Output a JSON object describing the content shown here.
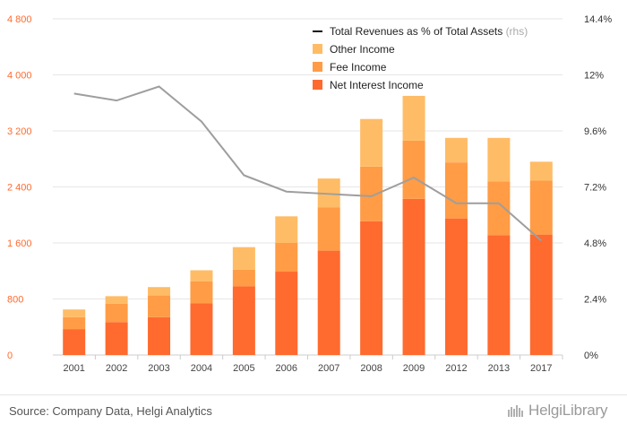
{
  "chart_data": {
    "type": "bar",
    "categories": [
      "2001",
      "2002",
      "2003",
      "2004",
      "2005",
      "2006",
      "2007",
      "2008",
      "2009",
      "2012",
      "2013",
      "2017"
    ],
    "series": [
      {
        "name": "Net Interest Income",
        "color": "#ff6a2f",
        "values": [
          370,
          470,
          540,
          740,
          980,
          1190,
          1490,
          1910,
          2230,
          1950,
          1710,
          1720
        ]
      },
      {
        "name": "Fee Income",
        "color": "#ff9c45",
        "values": [
          170,
          260,
          310,
          310,
          240,
          410,
          620,
          780,
          830,
          800,
          770,
          770
        ]
      },
      {
        "name": "Other Income",
        "color": "#ffbc66",
        "values": [
          110,
          110,
          120,
          160,
          320,
          380,
          410,
          680,
          640,
          350,
          620,
          270
        ]
      }
    ],
    "line": {
      "name": "Total Revenues as % of Total Assets",
      "suffix": "(rhs)",
      "color": "#9e9e9e",
      "values": [
        11.2,
        10.9,
        11.5,
        10.0,
        7.7,
        7.0,
        6.9,
        6.8,
        7.6,
        6.5,
        6.5,
        4.9
      ]
    },
    "left_axis": {
      "min": 0,
      "max": 4800,
      "ticks": [
        "0",
        "800",
        "1 600",
        "2 400",
        "3 200",
        "4 000",
        "4 800"
      ],
      "tick_values": [
        0,
        800,
        1600,
        2400,
        3200,
        4000,
        4800
      ]
    },
    "right_axis": {
      "min": 0,
      "max": 14.4,
      "ticks": [
        "0%",
        "2.4%",
        "4.8%",
        "7.2%",
        "9.6%",
        "12%",
        "14.4%"
      ],
      "tick_values": [
        0,
        2.4,
        4.8,
        7.2,
        9.6,
        12,
        14.4
      ]
    },
    "legend_position": "top-right",
    "grid": true
  },
  "footer": {
    "source": "Source: Company Data, Helgi Analytics",
    "logo": "HelgiLibrary"
  }
}
